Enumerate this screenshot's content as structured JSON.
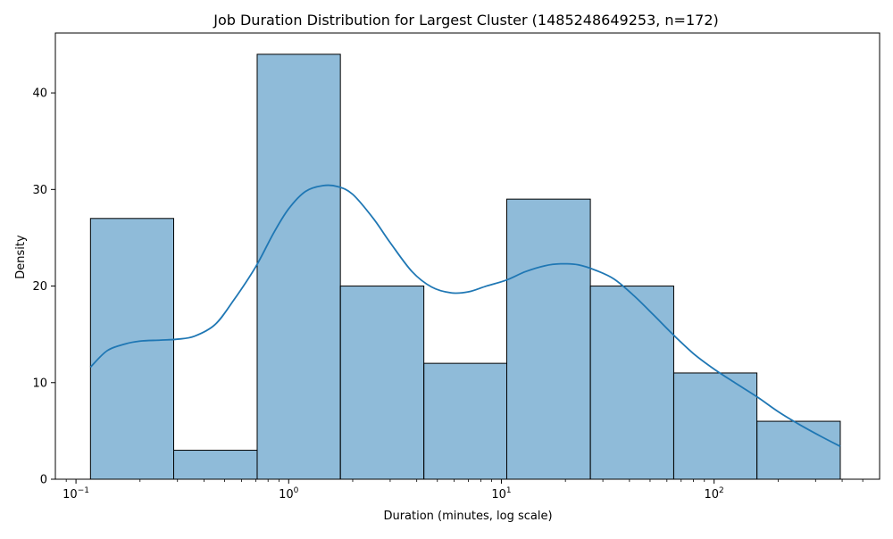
{
  "chart_data": {
    "type": "bar",
    "title": "Job Duration Distribution for Largest Cluster (1485248649253, n=172)",
    "xlabel": "Duration (minutes, log scale)",
    "ylabel": "Density",
    "x_scale": "log",
    "xlim": [
      0.08,
      600
    ],
    "ylim": [
      0,
      46.2
    ],
    "y_ticks": [
      0,
      10,
      20,
      30,
      40
    ],
    "x_major_ticks": [
      {
        "value": 0.1,
        "label_base": "10",
        "label_exp": "−1"
      },
      {
        "value": 1,
        "label_base": "10",
        "label_exp": "0"
      },
      {
        "value": 10,
        "label_base": "10",
        "label_exp": "1"
      },
      {
        "value": 100,
        "label_base": "10",
        "label_exp": "2"
      }
    ],
    "bins": [
      {
        "left": 0.117,
        "right": 0.288,
        "value": 27
      },
      {
        "left": 0.288,
        "right": 0.711,
        "value": 3
      },
      {
        "left": 0.711,
        "right": 1.75,
        "value": 44
      },
      {
        "left": 1.75,
        "right": 4.32,
        "value": 20
      },
      {
        "left": 4.32,
        "right": 10.6,
        "value": 12
      },
      {
        "left": 10.6,
        "right": 26.2,
        "value": 29
      },
      {
        "left": 26.2,
        "right": 64.6,
        "value": 20
      },
      {
        "left": 64.6,
        "right": 159,
        "value": 11
      },
      {
        "left": 159,
        "right": 392,
        "value": 6
      }
    ],
    "kde": {
      "x": [
        0.117,
        0.14,
        0.17,
        0.2,
        0.25,
        0.3,
        0.36,
        0.45,
        0.55,
        0.7,
        0.85,
        1.0,
        1.2,
        1.45,
        1.7,
        2.0,
        2.5,
        3.0,
        3.8,
        4.7,
        5.8,
        7.0,
        8.5,
        10.5,
        13,
        16,
        19,
        23,
        28,
        34,
        42,
        52,
        64,
        80,
        100,
        125,
        160,
        200,
        250,
        320,
        392
      ],
      "y": [
        11.6,
        13.3,
        14.0,
        14.3,
        14.4,
        14.5,
        14.8,
        16.0,
        18.5,
        22.0,
        25.5,
        28.0,
        29.8,
        30.4,
        30.3,
        29.5,
        27.0,
        24.5,
        21.5,
        19.9,
        19.3,
        19.4,
        20.0,
        20.6,
        21.5,
        22.1,
        22.3,
        22.2,
        21.6,
        20.7,
        19.0,
        17.0,
        15.0,
        13.0,
        11.4,
        10.0,
        8.5,
        7.0,
        5.7,
        4.4,
        3.4
      ]
    },
    "colors": {
      "bar_fill": "#1f77b4",
      "bar_fill_opacity": 0.5,
      "bar_edge": "#000000",
      "kde_line": "#1f77b4"
    }
  }
}
